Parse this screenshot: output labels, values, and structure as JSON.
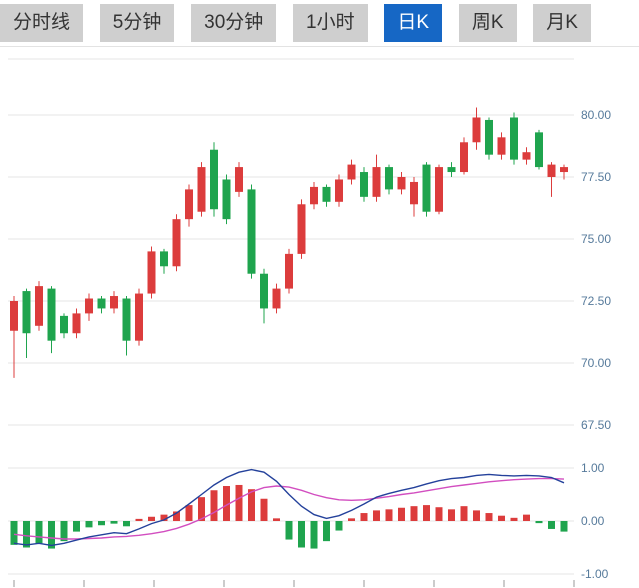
{
  "toolbar": {
    "tabs": [
      {
        "label": "分时线",
        "active": false
      },
      {
        "label": "5分钟",
        "active": false
      },
      {
        "label": "30分钟",
        "active": false
      },
      {
        "label": "1小时",
        "active": false
      },
      {
        "label": "日K",
        "active": true
      },
      {
        "label": "周K",
        "active": false
      },
      {
        "label": "月K",
        "active": false
      }
    ]
  },
  "colors": {
    "up": "#dc3c3c",
    "down": "#1fa44e",
    "dif_line": "#24419b",
    "dea_line": "#d24ec0",
    "grid": "#e4e4e4",
    "axis_text": "#567a9b",
    "active_tab_bg": "#1667c5",
    "tab_bg": "#cfcfcf"
  },
  "chart_data": {
    "type": "candlestick",
    "title": "",
    "legend": [],
    "price_axis": {
      "ticks": [
        80.0,
        77.5,
        75.0,
        72.5,
        70.0,
        67.5
      ],
      "labels": [
        "80.00",
        "77.50",
        "75.00",
        "72.50",
        "70.00",
        "67.50"
      ]
    },
    "macd_axis": {
      "ticks": [
        1.0,
        0.0,
        -1.0
      ],
      "labels": [
        "1.00",
        "0.00",
        "-1.00"
      ]
    },
    "candles": [
      [
        71.3,
        72.7,
        69.4,
        72.5
      ],
      [
        72.9,
        73.0,
        70.2,
        71.2
      ],
      [
        71.5,
        73.3,
        71.3,
        73.1
      ],
      [
        73.0,
        73.1,
        70.4,
        70.9
      ],
      [
        71.9,
        72.0,
        71.0,
        71.2
      ],
      [
        71.2,
        72.2,
        71.0,
        72.0
      ],
      [
        72.0,
        72.8,
        71.7,
        72.6
      ],
      [
        72.6,
        72.7,
        72.0,
        72.2
      ],
      [
        72.2,
        72.9,
        72.0,
        72.7
      ],
      [
        72.6,
        72.7,
        70.3,
        70.9
      ],
      [
        70.9,
        73.0,
        70.7,
        72.8
      ],
      [
        72.8,
        74.7,
        72.6,
        74.5
      ],
      [
        74.5,
        74.6,
        73.6,
        73.9
      ],
      [
        73.9,
        76.0,
        73.7,
        75.8
      ],
      [
        75.8,
        77.2,
        75.5,
        77.0
      ],
      [
        76.1,
        78.1,
        75.9,
        77.9
      ],
      [
        78.6,
        78.9,
        75.9,
        76.2
      ],
      [
        77.4,
        77.6,
        75.6,
        75.8
      ],
      [
        76.9,
        78.1,
        76.7,
        77.9
      ],
      [
        77.0,
        77.2,
        73.4,
        73.6
      ],
      [
        73.6,
        73.8,
        71.6,
        72.2
      ],
      [
        72.2,
        73.2,
        72.0,
        73.0
      ],
      [
        73.0,
        74.6,
        72.8,
        74.4
      ],
      [
        74.4,
        76.6,
        74.2,
        76.4
      ],
      [
        76.4,
        77.3,
        76.2,
        77.1
      ],
      [
        77.1,
        77.2,
        76.3,
        76.5
      ],
      [
        76.5,
        77.6,
        76.3,
        77.4
      ],
      [
        77.4,
        78.2,
        77.2,
        78.0
      ],
      [
        77.7,
        77.9,
        76.5,
        76.7
      ],
      [
        76.7,
        78.4,
        76.5,
        77.9
      ],
      [
        77.9,
        78.0,
        76.8,
        77.0
      ],
      [
        77.0,
        77.7,
        76.8,
        77.5
      ],
      [
        76.4,
        77.5,
        75.9,
        77.3
      ],
      [
        78.0,
        78.1,
        75.9,
        76.1
      ],
      [
        76.1,
        78.0,
        76.0,
        77.9
      ],
      [
        77.9,
        78.1,
        77.5,
        77.7
      ],
      [
        77.7,
        79.1,
        77.6,
        78.9
      ],
      [
        78.9,
        80.3,
        78.6,
        79.9
      ],
      [
        79.8,
        79.9,
        78.2,
        78.4
      ],
      [
        78.4,
        79.3,
        78.2,
        79.1
      ],
      [
        79.9,
        80.1,
        78.0,
        78.2
      ],
      [
        78.2,
        78.7,
        78.0,
        78.5
      ],
      [
        79.3,
        79.4,
        77.8,
        77.9
      ],
      [
        77.5,
        78.1,
        76.7,
        78.0
      ],
      [
        77.7,
        78.0,
        77.4,
        77.9
      ]
    ],
    "macd": {
      "hist": [
        -0.45,
        -0.5,
        -0.42,
        -0.52,
        -0.38,
        -0.2,
        -0.12,
        -0.08,
        -0.05,
        -0.1,
        0.04,
        0.08,
        0.12,
        0.18,
        0.3,
        0.45,
        0.58,
        0.66,
        0.68,
        0.6,
        0.42,
        0.05,
        -0.35,
        -0.5,
        -0.52,
        -0.38,
        -0.18,
        0.05,
        0.15,
        0.2,
        0.22,
        0.25,
        0.28,
        0.3,
        0.26,
        0.22,
        0.28,
        0.2,
        0.15,
        0.1,
        0.06,
        0.12,
        -0.04,
        -0.15,
        -0.2
      ],
      "dif": [
        -0.42,
        -0.45,
        -0.42,
        -0.46,
        -0.42,
        -0.36,
        -0.3,
        -0.26,
        -0.22,
        -0.24,
        -0.15,
        -0.05,
        0.02,
        0.15,
        0.32,
        0.5,
        0.68,
        0.82,
        0.92,
        0.97,
        0.92,
        0.75,
        0.5,
        0.28,
        0.12,
        0.05,
        0.1,
        0.2,
        0.32,
        0.45,
        0.52,
        0.58,
        0.63,
        0.7,
        0.76,
        0.8,
        0.82,
        0.86,
        0.88,
        0.86,
        0.85,
        0.86,
        0.85,
        0.82,
        0.72
      ],
      "dea": [
        -0.25,
        -0.28,
        -0.3,
        -0.32,
        -0.34,
        -0.34,
        -0.33,
        -0.32,
        -0.3,
        -0.29,
        -0.27,
        -0.24,
        -0.2,
        -0.14,
        -0.06,
        0.04,
        0.16,
        0.3,
        0.43,
        0.55,
        0.63,
        0.66,
        0.64,
        0.58,
        0.5,
        0.44,
        0.4,
        0.39,
        0.4,
        0.43,
        0.46,
        0.5,
        0.53,
        0.57,
        0.61,
        0.65,
        0.68,
        0.71,
        0.74,
        0.76,
        0.78,
        0.79,
        0.8,
        0.8,
        0.79
      ]
    }
  }
}
